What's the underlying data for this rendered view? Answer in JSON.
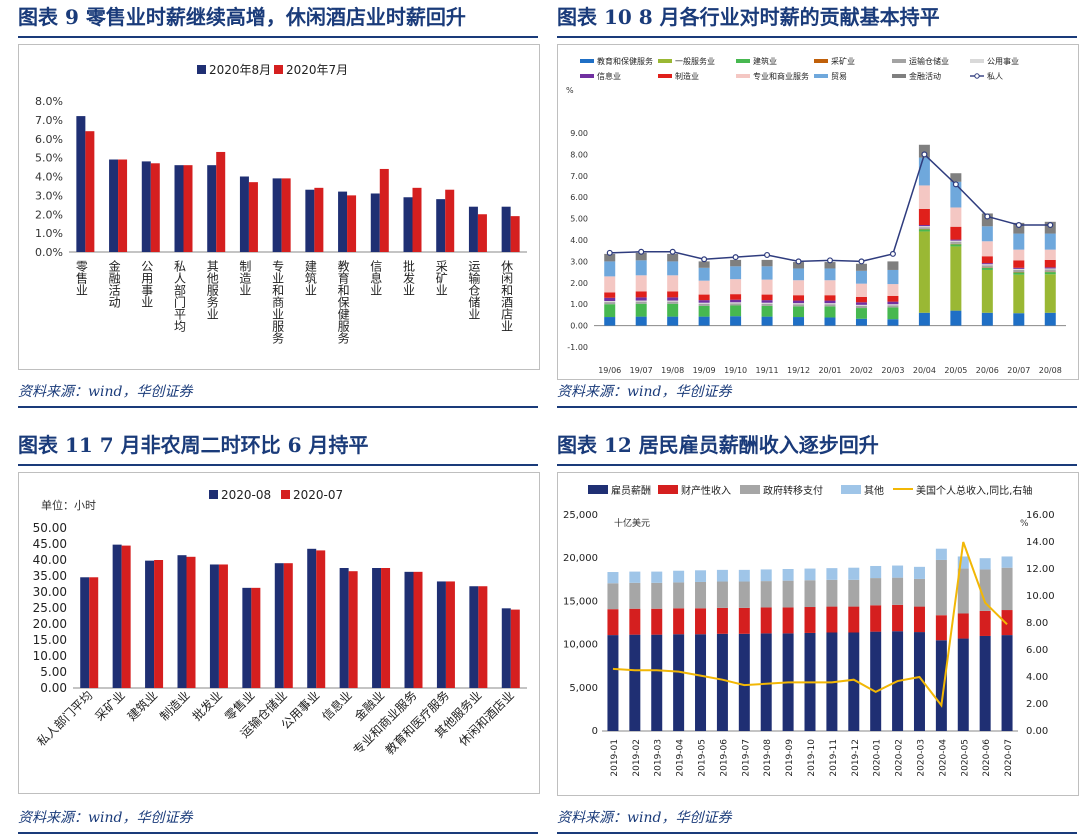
{
  "colors": {
    "navy": "#1f2f73",
    "red": "#d51f1f",
    "grey": "#a6a6a6",
    "lightblue": "#9fc5e8",
    "gold": "#f2b705",
    "private_line": "#2f3c7e"
  },
  "panels": [
    {
      "title": "图表 9   零售业时薪继续高增，休闲酒店业时薪回升",
      "source": "资料来源：wind，华创证券",
      "chart_data": {
        "type": "bar",
        "categories": [
          "零售业",
          "金融活动",
          "公用事业",
          "私人部门平均",
          "其他服务业",
          "制造业",
          "专业和商业服务",
          "建筑业",
          "教育和保健服务",
          "信息业",
          "批发业",
          "采矿业",
          "运输仓储业",
          "休闲和酒店业"
        ],
        "series": [
          {
            "name": "2020年8月",
            "values": [
              7.2,
              4.9,
              4.8,
              4.6,
              4.6,
              4.0,
              3.9,
              3.3,
              3.2,
              3.1,
              2.9,
              2.8,
              2.4,
              2.4
            ]
          },
          {
            "name": "2020年7月",
            "values": [
              6.4,
              4.9,
              4.7,
              4.6,
              5.3,
              3.7,
              3.9,
              3.4,
              3.0,
              4.4,
              3.4,
              3.3,
              2.0,
              1.9
            ]
          }
        ],
        "yticks": [
          "0.0%",
          "1.0%",
          "2.0%",
          "3.0%",
          "4.0%",
          "5.0%",
          "6.0%",
          "7.0%",
          "8.0%"
        ],
        "ylim": [
          0,
          8
        ],
        "legend": "top"
      }
    },
    {
      "title": "图表 10    8 月各行业对时薪的贡献基本持平",
      "source": "资料来源：wind，华创证券",
      "chart_data": {
        "type": "bar",
        "stacked": true,
        "unit": "%",
        "categories": [
          "19/06",
          "19/07",
          "19/08",
          "19/09",
          "19/10",
          "19/11",
          "19/12",
          "20/01",
          "20/02",
          "20/03",
          "20/04",
          "20/05",
          "20/06",
          "20/07",
          "20/08"
        ],
        "series": [
          {
            "name": "教育和保健服务",
            "color": "#1f6fc5",
            "values": [
              0.4,
              0.42,
              0.42,
              0.42,
              0.44,
              0.42,
              0.4,
              0.38,
              0.32,
              0.3,
              0.6,
              0.7,
              0.6,
              0.58,
              0.6
            ]
          },
          {
            "name": "一般服务业",
            "color": "#9ab834",
            "values": [
              0.0,
              0.0,
              0.0,
              0.0,
              0.0,
              0.0,
              0.0,
              0.0,
              0.0,
              0.0,
              3.8,
              3.0,
              2.0,
              1.8,
              1.8
            ]
          },
          {
            "name": "建筑业",
            "color": "#47b850",
            "values": [
              0.6,
              0.6,
              0.6,
              0.5,
              0.5,
              0.5,
              0.5,
              0.52,
              0.5,
              0.55,
              0.1,
              0.1,
              0.1,
              0.1,
              0.1
            ]
          },
          {
            "name": "采矿业",
            "color": "#c0600a",
            "values": [
              0.0,
              0.0,
              0.0,
              0.0,
              0.0,
              0.0,
              0.0,
              0.0,
              0.0,
              0.0,
              0.02,
              0.02,
              0.02,
              0.02,
              0.02
            ]
          },
          {
            "name": "运输仓储业",
            "color": "#a3a3a3",
            "values": [
              0.1,
              0.1,
              0.1,
              0.1,
              0.1,
              0.1,
              0.1,
              0.1,
              0.1,
              0.1,
              0.08,
              0.1,
              0.1,
              0.1,
              0.1
            ]
          },
          {
            "name": "公用事业",
            "color": "#d9d9d9",
            "values": [
              0.05,
              0.05,
              0.05,
              0.05,
              0.05,
              0.05,
              0.05,
              0.05,
              0.05,
              0.05,
              0.05,
              0.05,
              0.05,
              0.05,
              0.05
            ]
          },
          {
            "name": "信息业",
            "color": "#7030a0",
            "values": [
              0.15,
              0.15,
              0.15,
              0.12,
              0.12,
              0.12,
              0.12,
              0.12,
              0.12,
              0.12,
              0.05,
              0.05,
              0.05,
              0.05,
              0.05
            ]
          },
          {
            "name": "制造业",
            "color": "#e0201b",
            "values": [
              0.25,
              0.28,
              0.28,
              0.26,
              0.26,
              0.26,
              0.25,
              0.25,
              0.25,
              0.27,
              0.75,
              0.6,
              0.32,
              0.35,
              0.35
            ]
          },
          {
            "name": "专业和商业服务",
            "color": "#f4c7c3",
            "values": [
              0.75,
              0.75,
              0.75,
              0.65,
              0.7,
              0.7,
              0.7,
              0.7,
              0.62,
              0.55,
              1.1,
              0.9,
              0.7,
              0.5,
              0.48
            ]
          },
          {
            "name": "贸易",
            "color": "#6fa8dc",
            "values": [
              0.7,
              0.7,
              0.65,
              0.6,
              0.6,
              0.62,
              0.55,
              0.55,
              0.6,
              0.66,
              1.3,
              1.2,
              0.7,
              0.75,
              0.75
            ]
          },
          {
            "name": "金融活动",
            "color": "#7f7f7f",
            "values": [
              0.35,
              0.35,
              0.35,
              0.3,
              0.3,
              0.3,
              0.3,
              0.3,
              0.33,
              0.4,
              0.6,
              0.4,
              0.6,
              0.5,
              0.55
            ]
          }
        ],
        "line": {
          "name": "私人",
          "values": [
            3.4,
            3.45,
            3.45,
            3.1,
            3.2,
            3.3,
            3.0,
            3.05,
            3.0,
            3.35,
            8.0,
            6.6,
            5.1,
            4.7,
            4.7
          ]
        },
        "yticks": [
          "-1.00",
          "0.00",
          "1.00",
          "2.00",
          "3.00",
          "4.00",
          "5.00",
          "6.00",
          "7.00",
          "8.00",
          "9.00"
        ],
        "ylim": [
          -1,
          9
        ]
      }
    },
    {
      "title": "图表 11    7 月非农周二时环比 6 月持平",
      "source": "资料来源：wind，华创证券",
      "chart_data": {
        "type": "bar",
        "unit_label": "单位：小时",
        "categories": [
          "私人部门平均",
          "采矿业",
          "建筑业",
          "制造业",
          "批发业",
          "零售业",
          "运输仓储业",
          "公用事业",
          "信息业",
          "金融业",
          "专业和商业服务",
          "教育和医疗服务",
          "其他服务业",
          "休闲和酒店业"
        ],
        "series": [
          {
            "name": "2020-08",
            "values": [
              34.6,
              44.8,
              39.8,
              41.5,
              38.6,
              31.3,
              39.0,
              43.5,
              37.5,
              37.5,
              36.3,
              33.3,
              31.8,
              24.9
            ]
          },
          {
            "name": "2020-07",
            "values": [
              34.6,
              44.5,
              40.0,
              41.0,
              38.6,
              31.3,
              39.0,
              43.0,
              36.5,
              37.5,
              36.3,
              33.3,
              31.8,
              24.5
            ]
          }
        ],
        "yticks": [
          "0.00",
          "5.00",
          "10.00",
          "15.00",
          "20.00",
          "25.00",
          "30.00",
          "35.00",
          "40.00",
          "45.00",
          "50.00"
        ],
        "ylim": [
          0,
          50
        ],
        "legend": "top"
      }
    },
    {
      "title": "图表 12   居民雇员薪酬收入逐步回升",
      "source": "资料来源：wind，华创证券",
      "chart_data": {
        "type": "bar",
        "stacked": true,
        "left_unit": "十亿美元",
        "right_unit": "%",
        "categories": [
          "2019-01",
          "2019-02",
          "2019-03",
          "2019-04",
          "2019-05",
          "2019-06",
          "2019-07",
          "2019-08",
          "2019-09",
          "2019-10",
          "2019-11",
          "2019-12",
          "2020-01",
          "2020-02",
          "2020-03",
          "2020-04",
          "2020-05",
          "2020-06",
          "2020-07"
        ],
        "series": [
          {
            "name": "雇员薪酬",
            "color": "#1f2f73",
            "values": [
              11100,
              11150,
              11150,
              11200,
              11200,
              11250,
              11250,
              11300,
              11300,
              11350,
              11400,
              11400,
              11500,
              11550,
              11450,
              10500,
              10700,
              11000,
              11100
            ]
          },
          {
            "name": "财产性收入",
            "color": "#d51f1f",
            "values": [
              3000,
              3000,
              3000,
              3000,
              3000,
              3000,
              3000,
              3000,
              3000,
              3000,
              3000,
              3000,
              3050,
              3050,
              2950,
              2900,
              2900,
              2900,
              2900
            ]
          },
          {
            "name": "政府转移支付",
            "color": "#a6a6a6",
            "values": [
              3000,
              3000,
              3000,
              3000,
              3050,
              3050,
              3050,
              3050,
              3100,
              3100,
              3100,
              3100,
              3150,
              3150,
              3200,
              6400,
              5200,
              4800,
              4900
            ]
          },
          {
            "name": "其他",
            "color": "#9fc5e8",
            "values": [
              1300,
              1300,
              1300,
              1350,
              1350,
              1350,
              1350,
              1350,
              1350,
              1350,
              1350,
              1400,
              1400,
              1400,
              1400,
              1300,
              1400,
              1300,
              1300
            ]
          }
        ],
        "line": {
          "name": "美国个人总收入,同比,右轴",
          "values": [
            4.6,
            4.5,
            4.5,
            4.4,
            4.1,
            3.8,
            3.4,
            3.5,
            3.6,
            3.6,
            3.6,
            3.8,
            2.9,
            3.7,
            4.0,
            1.9,
            14.0,
            9.5,
            7.9
          ]
        },
        "yticks_left": [
          "0",
          "5,000",
          "10,000",
          "15,000",
          "20,000",
          "25,000"
        ],
        "ylim_left": [
          0,
          25000
        ],
        "yticks_right": [
          "0.00",
          "2.00",
          "4.00",
          "6.00",
          "8.00",
          "10.00",
          "12.00",
          "14.00",
          "16.00"
        ],
        "ylim_right": [
          0,
          16
        ]
      }
    }
  ]
}
